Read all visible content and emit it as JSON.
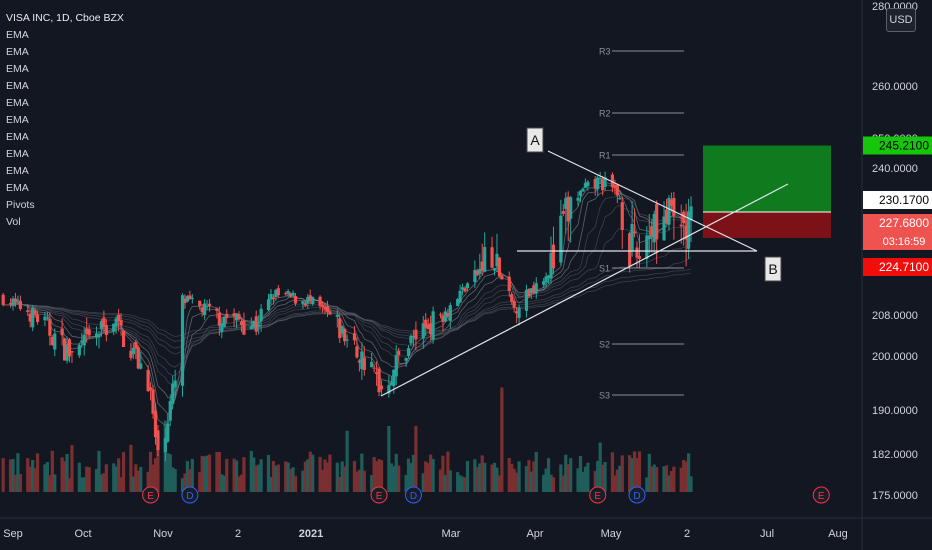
{
  "legend": {
    "title": "VISA INC, 1D, Cboe BZX",
    "indicators": [
      "EMA",
      "EMA",
      "EMA",
      "EMA",
      "EMA",
      "EMA",
      "EMA",
      "EMA",
      "EMA",
      "EMA",
      "Pivots",
      "Vol"
    ]
  },
  "currency_button": "USD",
  "annotations": {
    "label_a": "A",
    "label_b": "B"
  },
  "colors": {
    "background": "#131722",
    "up": "#26a69a",
    "down": "#ef5350",
    "profit_zone": "#0f7a1e",
    "loss_zone": "#7d1118",
    "target_tag": "#16c60c",
    "stop_tag": "#f20d0d",
    "last_price_tag": "#ef5350"
  },
  "chart_data": {
    "type": "candlestick",
    "symbol": "VISA INC",
    "interval": "1D",
    "exchange": "Cboe BZX",
    "currency": "USD",
    "x_tick_labels": [
      "Sep",
      "Oct",
      "Nov",
      "2",
      "2021",
      "Mar",
      "Apr",
      "May",
      "2",
      "Jul",
      "Aug"
    ],
    "y_tick_labels": [
      "280.0000",
      "260.0000",
      "250.0000",
      "240.0000",
      "208.0000",
      "200.0000",
      "190.0000",
      "182.0000",
      "175.0000"
    ],
    "price_tags": [
      {
        "label": "245.2100",
        "role": "target"
      },
      {
        "label": "230.1700",
        "role": "entry"
      },
      {
        "label": "227.6800",
        "role": "last_price"
      },
      {
        "label": "03:16:59",
        "role": "countdown"
      },
      {
        "label": "224.7100",
        "role": "stop"
      }
    ],
    "pivot_labels": [
      "R3",
      "R2",
      "R1",
      "S1",
      "S2",
      "S3"
    ],
    "pivot_levels": {
      "R3": 272,
      "R2": 256,
      "R1": 245,
      "S1": 224,
      "S2": 204,
      "S3": 193
    },
    "trendlines": [
      {
        "name": "upper",
        "from": {
          "date": "2021-01-29",
          "price": 192.5
        },
        "to": {
          "date": "2021-06-07",
          "price": 225.5
        }
      },
      {
        "name": "lower",
        "from": {
          "date": "2021-02-26",
          "price": 243
        },
        "to": {
          "date": "2021-07-05",
          "price": 225
        }
      },
      {
        "name": "horizontal",
        "from": {
          "date": "2021-03-23",
          "price": 225
        },
        "to": {
          "date": "2021-07-01",
          "price": 225
        }
      }
    ],
    "position": {
      "entry": 230.17,
      "target": 245.21,
      "stop": 224.71,
      "start_date": "2021-06-07",
      "end_date": "2021-07-20"
    },
    "event_markers": [
      {
        "date": "2020-10-27",
        "label": "E"
      },
      {
        "date": "2020-11-12",
        "label": "D"
      },
      {
        "date": "2021-01-28",
        "label": "E"
      },
      {
        "date": "2021-02-11",
        "label": "D"
      },
      {
        "date": "2021-04-27",
        "label": "E"
      },
      {
        "date": "2021-05-13",
        "label": "D"
      },
      {
        "date": "2021-07-27",
        "label": "E"
      }
    ],
    "ohlc_anchors": [
      {
        "date": "2020-08-28",
        "close": 214
      },
      {
        "date": "2020-09-10",
        "close": 208
      },
      {
        "date": "2020-09-25",
        "close": 200
      },
      {
        "date": "2020-10-12",
        "close": 207
      },
      {
        "date": "2020-10-26",
        "close": 196
      },
      {
        "date": "2020-10-30",
        "close": 181
      },
      {
        "date": "2020-11-06",
        "close": 195
      },
      {
        "date": "2020-11-09",
        "close": 213
      },
      {
        "date": "2020-11-24",
        "close": 208
      },
      {
        "date": "2020-12-09",
        "close": 206
      },
      {
        "date": "2020-12-16",
        "close": 215
      },
      {
        "date": "2020-12-30",
        "close": 213
      },
      {
        "date": "2021-01-12",
        "close": 205
      },
      {
        "date": "2021-01-27",
        "close": 196
      },
      {
        "date": "2021-01-29",
        "close": 194
      },
      {
        "date": "2021-02-10",
        "close": 203
      },
      {
        "date": "2021-02-25",
        "close": 210
      },
      {
        "date": "2021-03-05",
        "close": 219
      },
      {
        "date": "2021-03-12",
        "close": 225
      },
      {
        "date": "2021-03-17",
        "close": 224
      },
      {
        "date": "2021-03-24",
        "close": 210
      },
      {
        "date": "2021-04-05",
        "close": 222
      },
      {
        "date": "2021-04-16",
        "close": 230
      },
      {
        "date": "2021-04-28",
        "close": 236
      },
      {
        "date": "2021-05-05",
        "close": 232
      },
      {
        "date": "2021-05-12",
        "close": 225
      },
      {
        "date": "2021-05-20",
        "close": 229
      },
      {
        "date": "2021-06-04",
        "close": 227.68
      }
    ]
  }
}
